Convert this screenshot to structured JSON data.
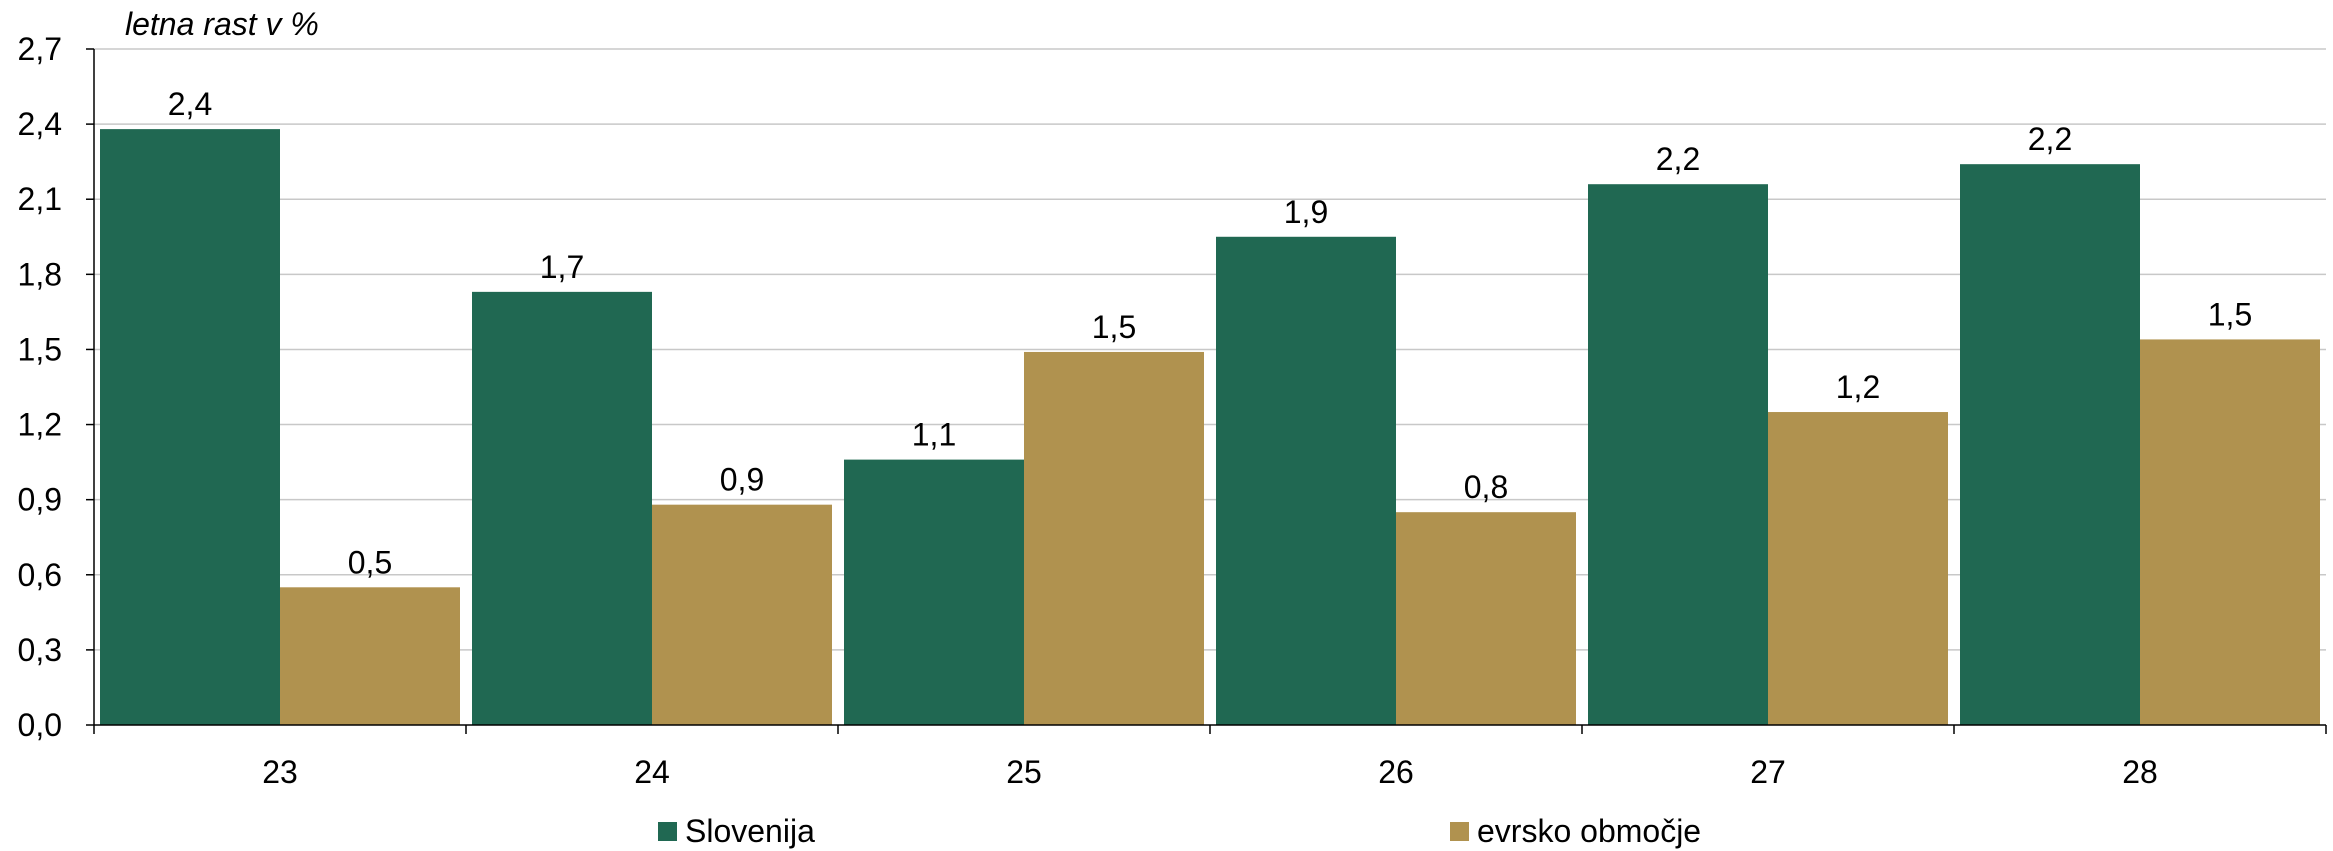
{
  "chart_data": {
    "type": "bar",
    "ylabel": "letna rast v %",
    "xlabel": "",
    "categories": [
      "23",
      "24",
      "25",
      "26",
      "27",
      "28"
    ],
    "series": [
      {
        "name": "Slovenija",
        "color": "#206852",
        "values": [
          2.4,
          1.7,
          1.1,
          1.9,
          2.2,
          2.2
        ],
        "heights": [
          2.38,
          1.73,
          1.06,
          1.95,
          2.16,
          2.24
        ]
      },
      {
        "name": "evrsko območje",
        "color": "#B0924F",
        "values": [
          0.5,
          0.9,
          1.5,
          0.8,
          1.2,
          1.5
        ],
        "heights": [
          0.55,
          0.88,
          1.49,
          0.85,
          1.25,
          1.54
        ]
      }
    ],
    "data_labels": [
      [
        "2,4",
        "1,7",
        "1,1",
        "1,9",
        "2,2",
        "2,2"
      ],
      [
        "0,5",
        "0,9",
        "1,5",
        "0,8",
        "1,2",
        "1,5"
      ]
    ],
    "yticks": [
      0.0,
      0.3,
      0.6,
      0.9,
      1.2,
      1.5,
      1.8,
      2.1,
      2.4,
      2.7
    ],
    "ytick_labels": [
      "0,0",
      "0,3",
      "0,6",
      "0,9",
      "1,2",
      "1,5",
      "1,8",
      "2,1",
      "2,4",
      "2,7"
    ],
    "ylim": [
      0,
      2.7
    ],
    "grid": true,
    "legend_position": "bottom"
  }
}
